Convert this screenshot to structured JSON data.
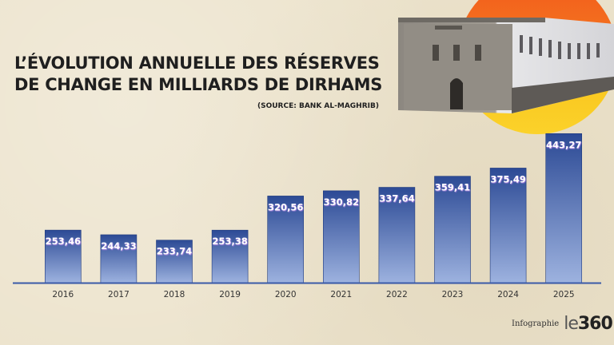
{
  "header": {
    "title_line1": "L’ÉVOLUTION ANNUELLE DES RÉSERVES",
    "title_line2": "DE CHANGE EN MILLIARDS DE DIRHAMS",
    "source": "(SOURCE: BANK AL-MAGHRIB)"
  },
  "illustration": {
    "subject": "Bank Al-Maghrib headquarters building",
    "sun_colors": [
      "#f25a1c",
      "#f9c21b"
    ]
  },
  "footer": {
    "credit": "Infographie",
    "logo_prefix": "le",
    "logo_suffix": "360"
  },
  "colors": {
    "background": "#ece3cc",
    "bar_top": "#2c4a95",
    "bar_bottom": "#9db2df",
    "axis": "#3a5aa8",
    "label_fill": "#ffffff",
    "label_glow": "#c58bf0",
    "tick_text": "#333333"
  },
  "chart_data": {
    "type": "bar",
    "title": "L’évolution annuelle des réserves de change en milliards de dirhams",
    "xlabel": "",
    "ylabel": "Milliards de dirhams",
    "categories": [
      "2016",
      "2017",
      "2018",
      "2019",
      "2020",
      "2021",
      "2022",
      "2023",
      "2024",
      "2025"
    ],
    "values": [
      253.46,
      244.33,
      233.74,
      253.38,
      320.56,
      330.82,
      337.64,
      359.41,
      375.49,
      443.27
    ],
    "value_labels": [
      "253,46",
      "244,33",
      "233,74",
      "253,38",
      "320,56",
      "330,82",
      "337,64",
      "359,41",
      "375,49",
      "443,27"
    ],
    "ylim": [
      150,
      450
    ],
    "grid": false,
    "legend": "none"
  }
}
